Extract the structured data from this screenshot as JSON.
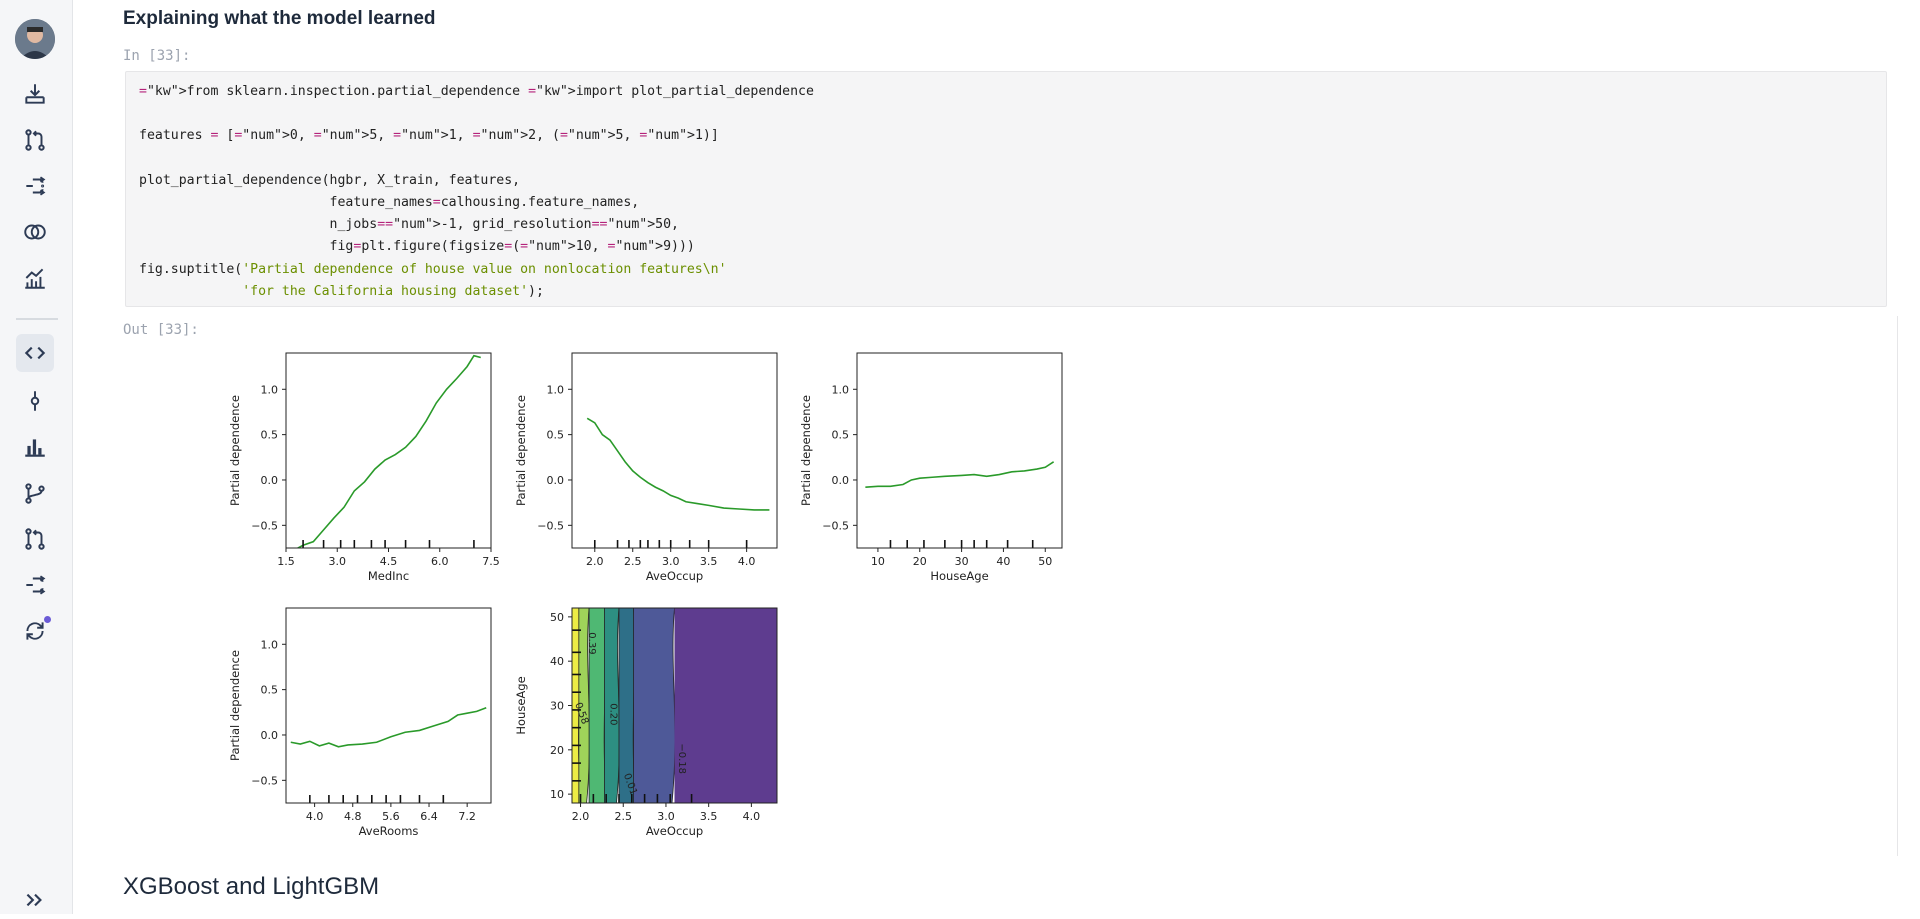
{
  "notebook": {
    "section_title": "Explaining what the model learned",
    "in_prompt": "In [33]:",
    "out_prompt": "Out [33]:",
    "next_title": "XGBoost and LightGBM",
    "code_lines": [
      "from sklearn.inspection.partial_dependence import plot_partial_dependence",
      "",
      "features = [0, 5, 1, 2, (5, 1)]",
      "",
      "plot_partial_dependence(hgbr, X_train, features,",
      "                        feature_names=calhousing.feature_names,",
      "                        n_jobs=-1, grid_resolution=50,",
      "                        fig=plt.figure(figsize=(10, 9)))",
      "fig.suptitle('Partial dependence of house value on nonlocation features\\n'",
      "             'for the California housing dataset');"
    ]
  },
  "sidebar": {
    "icons": [
      "avatar",
      "download-icon",
      "pull-request-icon",
      "git-compare-icon",
      "intersect-icon",
      "chart-line-icon",
      "code-icon",
      "commit-icon",
      "bar-chart-icon",
      "branch-icon",
      "pull-request-2-icon",
      "git-compare-2-icon",
      "sync-icon",
      "expand-icon"
    ],
    "active": "code-icon",
    "notification_color": "#6b5bd6"
  },
  "colors": {
    "line": "#2a9a2a",
    "purple": "#5e3c8f",
    "contour_dark": "#3b5b8f",
    "contour_yellow": "#e3e34b"
  },
  "chart_data": [
    {
      "type": "line",
      "xlabel": "MedInc",
      "ylabel": "Partial dependence",
      "xticks": [
        "1.5",
        "3.0",
        "4.5",
        "6.0",
        "7.5"
      ],
      "yticks": [
        "−0.5",
        "0.0",
        "0.5",
        "1.0"
      ],
      "xlim": [
        1.5,
        7.5
      ],
      "ylim": [
        -0.75,
        1.4
      ],
      "deciles": [
        2.0,
        2.6,
        3.1,
        3.5,
        4.0,
        4.4,
        5.0,
        5.7,
        7.0
      ],
      "x": [
        1.8,
        2.0,
        2.3,
        2.6,
        2.9,
        3.2,
        3.5,
        3.8,
        4.1,
        4.4,
        4.7,
        5.0,
        5.3,
        5.6,
        5.9,
        6.2,
        6.5,
        6.8,
        7.0,
        7.2
      ],
      "y": [
        -0.76,
        -0.72,
        -0.68,
        -0.55,
        -0.42,
        -0.3,
        -0.12,
        -0.02,
        0.12,
        0.22,
        0.28,
        0.36,
        0.48,
        0.65,
        0.85,
        1.0,
        1.12,
        1.25,
        1.37,
        1.35
      ]
    },
    {
      "type": "line",
      "xlabel": "AveOccup",
      "ylabel": "Partial dependence",
      "xticks": [
        "2.0",
        "2.5",
        "3.0",
        "3.5",
        "4.0"
      ],
      "yticks": [
        "−0.5",
        "0.0",
        "0.5",
        "1.0"
      ],
      "xlim": [
        1.7,
        4.4
      ],
      "ylim": [
        -0.75,
        1.4
      ],
      "deciles": [
        2.0,
        2.3,
        2.45,
        2.6,
        2.7,
        2.85,
        3.0,
        3.25,
        3.5,
        4.0
      ],
      "x": [
        1.9,
        2.0,
        2.1,
        2.2,
        2.3,
        2.4,
        2.5,
        2.6,
        2.7,
        2.8,
        2.9,
        3.0,
        3.1,
        3.2,
        3.35,
        3.5,
        3.7,
        3.9,
        4.1,
        4.3
      ],
      "y": [
        0.68,
        0.63,
        0.5,
        0.44,
        0.32,
        0.2,
        0.1,
        0.03,
        -0.03,
        -0.08,
        -0.12,
        -0.17,
        -0.2,
        -0.24,
        -0.26,
        -0.28,
        -0.31,
        -0.32,
        -0.33,
        -0.33
      ]
    },
    {
      "type": "line",
      "xlabel": "HouseAge",
      "ylabel": "Partial dependence",
      "xticks": [
        "10",
        "20",
        "30",
        "40",
        "50"
      ],
      "yticks": [
        "−0.5",
        "0.0",
        "0.5",
        "1.0"
      ],
      "xlim": [
        5,
        54
      ],
      "ylim": [
        -0.75,
        1.4
      ],
      "deciles": [
        13,
        17,
        21,
        26,
        30,
        33,
        36,
        41,
        47
      ],
      "x": [
        7,
        10,
        13,
        16,
        18,
        20,
        23,
        26,
        30,
        33,
        36,
        39,
        42,
        45,
        48,
        50,
        52
      ],
      "y": [
        -0.08,
        -0.07,
        -0.07,
        -0.05,
        0.0,
        0.02,
        0.03,
        0.04,
        0.05,
        0.06,
        0.04,
        0.06,
        0.09,
        0.1,
        0.12,
        0.14,
        0.2
      ]
    },
    {
      "type": "line",
      "xlabel": "AveRooms",
      "ylabel": "Partial dependence",
      "xticks": [
        "4.0",
        "4.8",
        "5.6",
        "6.4",
        "7.2"
      ],
      "yticks": [
        "−0.5",
        "0.0",
        "0.5",
        "1.0"
      ],
      "xlim": [
        3.4,
        7.7
      ],
      "ylim": [
        -0.75,
        1.4
      ],
      "deciles": [
        3.9,
        4.3,
        4.6,
        4.9,
        5.2,
        5.5,
        5.8,
        6.2,
        6.7
      ],
      "x": [
        3.5,
        3.7,
        3.9,
        4.1,
        4.3,
        4.5,
        4.7,
        5.0,
        5.3,
        5.6,
        5.9,
        6.2,
        6.5,
        6.8,
        7.0,
        7.2,
        7.4,
        7.6
      ],
      "y": [
        -0.08,
        -0.1,
        -0.07,
        -0.12,
        -0.09,
        -0.13,
        -0.11,
        -0.1,
        -0.08,
        -0.02,
        0.03,
        0.05,
        0.1,
        0.15,
        0.22,
        0.24,
        0.26,
        0.3
      ]
    },
    {
      "type": "heatmap",
      "xlabel": "AveOccup",
      "ylabel": "HouseAge",
      "xticks": [
        "2.0",
        "2.5",
        "3.0",
        "3.5",
        "4.0"
      ],
      "yticks": [
        "10",
        "20",
        "30",
        "40",
        "50"
      ],
      "xlim": [
        1.9,
        4.3
      ],
      "ylim": [
        8,
        52
      ],
      "contour_labels": [
        "0.39",
        "0.20",
        "0.58",
        "0.01",
        "−0.18"
      ],
      "colors": [
        "#ecec45",
        "#9fd35a",
        "#4fb873",
        "#2d8f82",
        "#2e6f88",
        "#4e5998",
        "#5e3c8f"
      ]
    }
  ]
}
